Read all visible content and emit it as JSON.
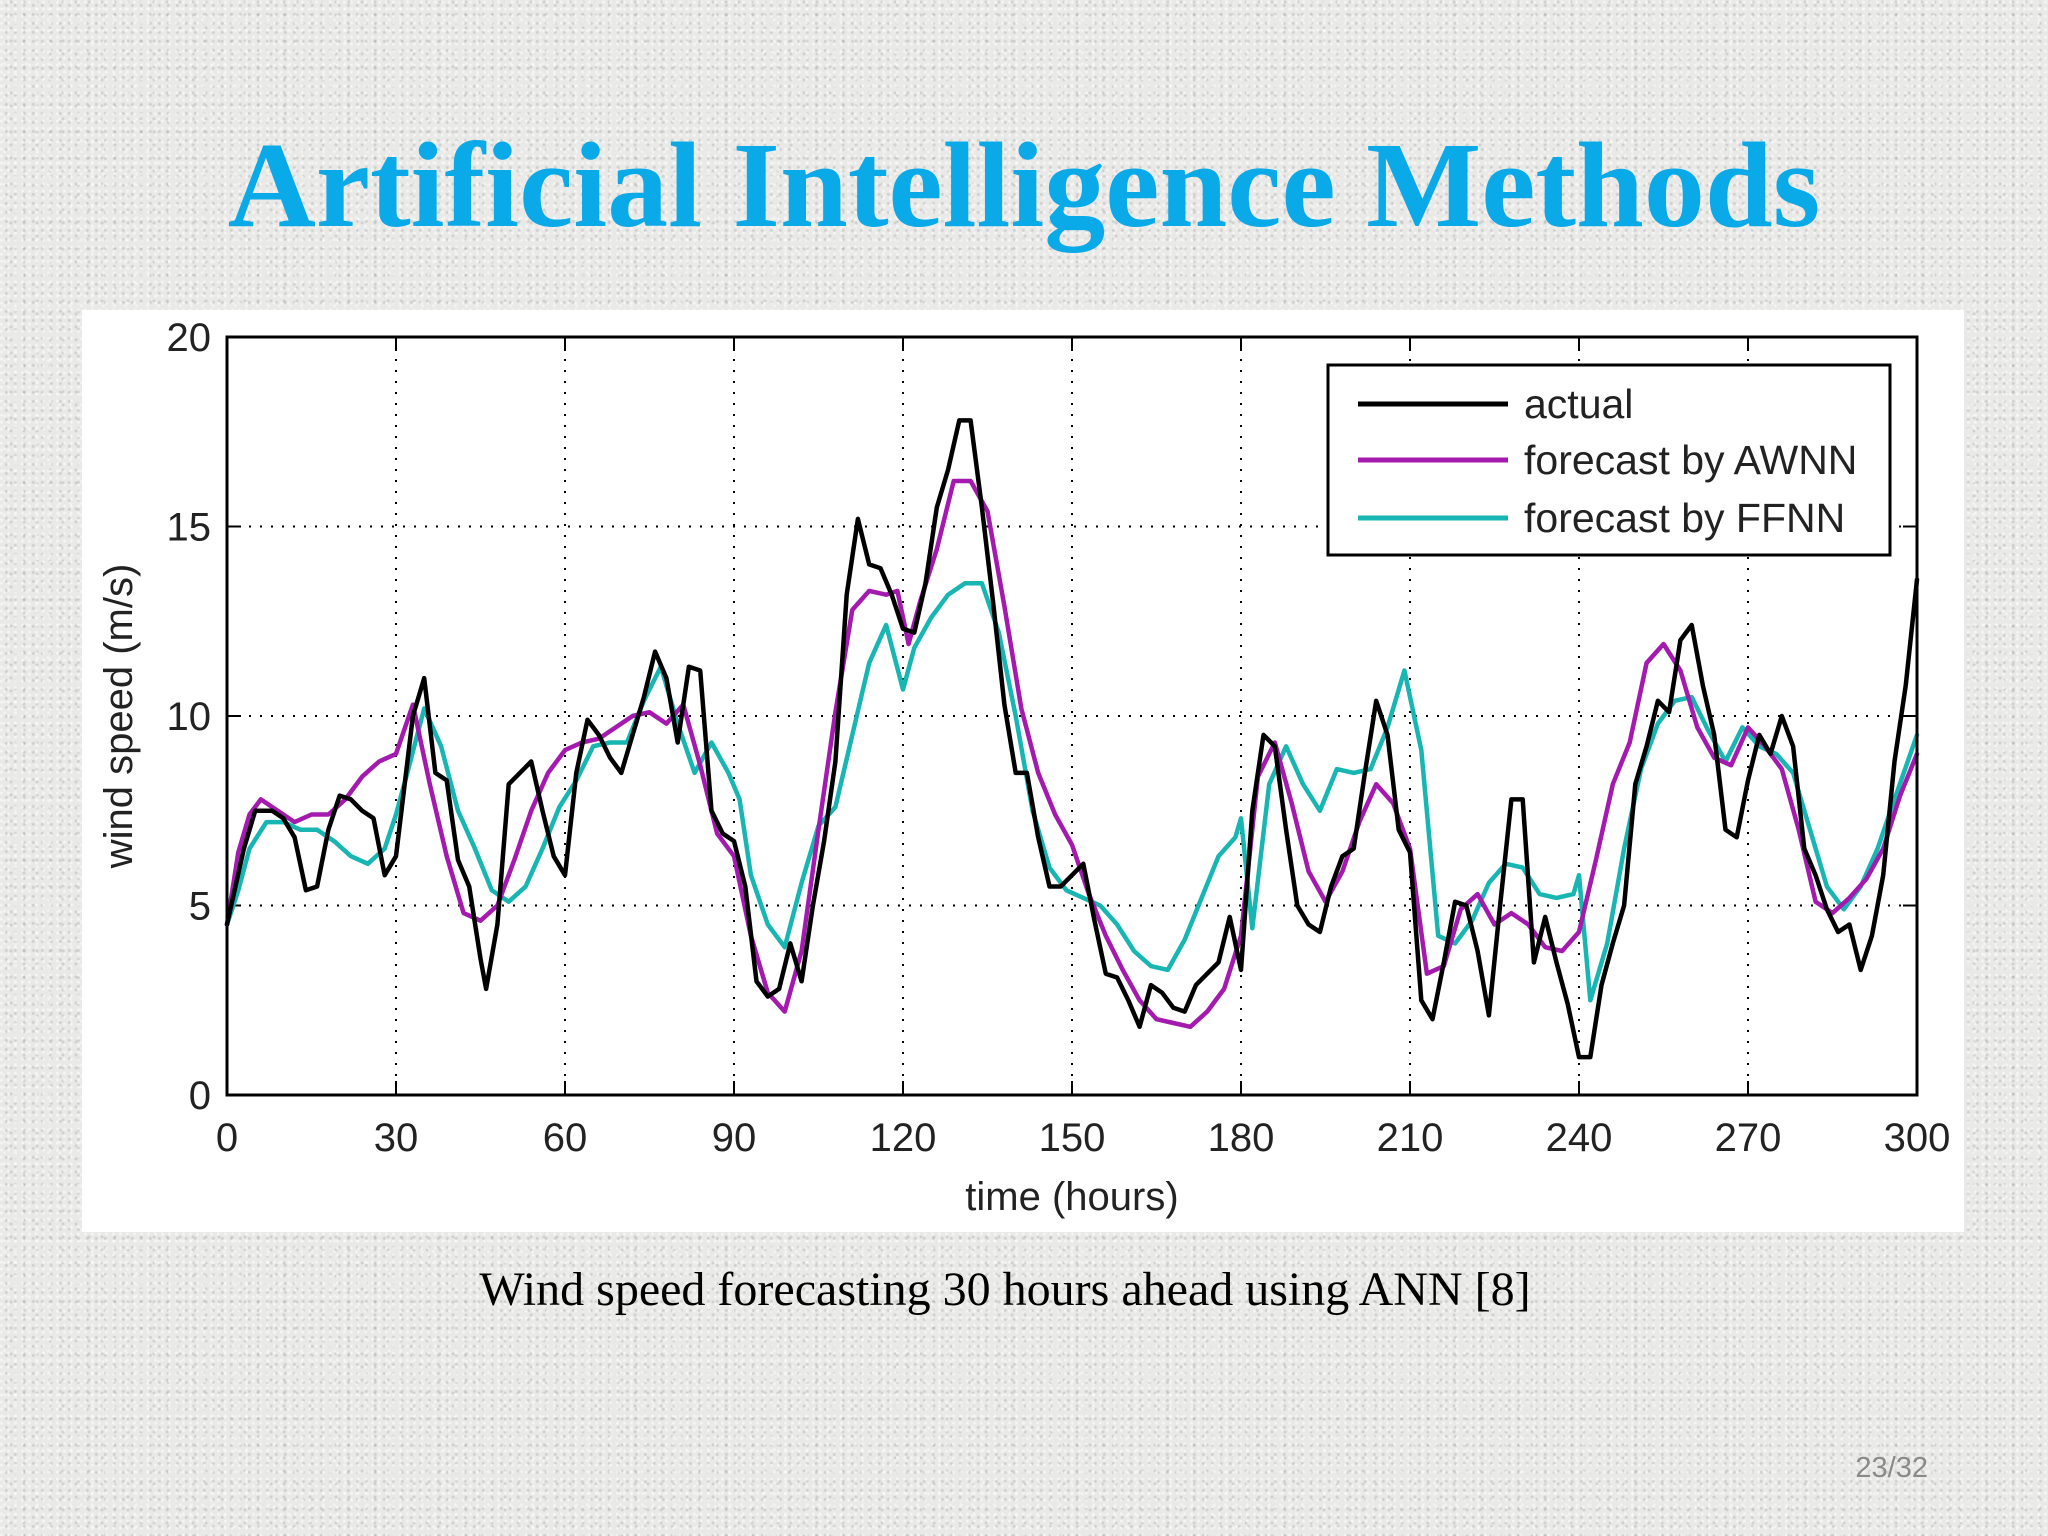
{
  "slide": {
    "title": "Artificial Intelligence Methods",
    "caption": "Wind speed forecasting 30 hours ahead using ANN [8]",
    "page_number": "23/32",
    "title_color": "#0aa9e8"
  },
  "chart_data": {
    "type": "line",
    "title": "",
    "xlabel": "time (hours)",
    "ylabel": "wind speed (m/s)",
    "xlim": [
      0,
      300
    ],
    "ylim": [
      0,
      20
    ],
    "xticks": [
      0,
      30,
      60,
      90,
      120,
      150,
      180,
      210,
      240,
      270,
      300
    ],
    "yticks": [
      0,
      5,
      10,
      15,
      20
    ],
    "grid": true,
    "legend_position": "top-right",
    "series": [
      {
        "name": "actual",
        "color": "#000000",
        "x": [
          0,
          3,
          5,
          8,
          10,
          12,
          14,
          16,
          18,
          20,
          22,
          24,
          26,
          28,
          30,
          33,
          35,
          37,
          39,
          41,
          43,
          45,
          46,
          48,
          50,
          52,
          54,
          56,
          58,
          60,
          62,
          64,
          66,
          68,
          70,
          72,
          74,
          76,
          78,
          80,
          82,
          84,
          86,
          88,
          90,
          92,
          94,
          96,
          98,
          100,
          102,
          104,
          106,
          108,
          110,
          112,
          114,
          116,
          118,
          120,
          122,
          124,
          126,
          128,
          130,
          132,
          134,
          136,
          138,
          140,
          142,
          144,
          146,
          148,
          150,
          152,
          154,
          156,
          158,
          160,
          162,
          164,
          166,
          168,
          170,
          172,
          174,
          176,
          178,
          180,
          182,
          184,
          186,
          188,
          190,
          192,
          194,
          196,
          198,
          200,
          202,
          204,
          206,
          208,
          210,
          212,
          214,
          216,
          218,
          220,
          222,
          224,
          226,
          228,
          230,
          232,
          234,
          236,
          238,
          240,
          242,
          244,
          246,
          248,
          250,
          252,
          254,
          256,
          258,
          260,
          262,
          264,
          266,
          268,
          270,
          272,
          274,
          276,
          278,
          280,
          282,
          284,
          286,
          288,
          290,
          292,
          294,
          296,
          298,
          300
        ],
        "values": [
          4.5,
          6.5,
          7.5,
          7.5,
          7.3,
          6.8,
          5.4,
          5.5,
          7,
          7.9,
          7.8,
          7.5,
          7.3,
          5.8,
          6.3,
          10,
          11,
          8.5,
          8.3,
          6.2,
          5.5,
          3.6,
          2.8,
          4.5,
          8.2,
          8.5,
          8.8,
          7.5,
          6.3,
          5.8,
          8.5,
          9.9,
          9.5,
          8.9,
          8.5,
          9.5,
          10.5,
          11.7,
          11,
          9.3,
          11.3,
          11.2,
          7.5,
          6.9,
          6.7,
          5.5,
          3,
          2.6,
          2.8,
          4,
          3,
          5,
          6.7,
          8.8,
          13.2,
          15.2,
          14,
          13.9,
          13.2,
          12.3,
          12.2,
          13.5,
          15.5,
          16.5,
          17.8,
          17.8,
          15.5,
          13,
          10.3,
          8.5,
          8.5,
          6.8,
          5.5,
          5.5,
          5.8,
          6.1,
          4.6,
          3.2,
          3.1,
          2.5,
          1.8,
          2.9,
          2.7,
          2.3,
          2.2,
          2.9,
          3.2,
          3.5,
          4.7,
          3.3,
          7.5,
          9.5,
          9.2,
          7,
          5,
          4.5,
          4.3,
          5.5,
          6.3,
          6.5,
          8.5,
          10.4,
          9.5,
          7,
          6.4,
          2.5,
          2,
          3.5,
          5.1,
          5,
          3.8,
          2.1,
          5,
          7.8,
          7.8,
          3.5,
          4.7,
          3.5,
          2.4,
          1,
          1,
          2.9,
          4,
          5,
          8.2,
          9.2,
          10.4,
          10.1,
          12,
          12.4,
          10.8,
          9.5,
          7,
          6.8,
          8.3,
          9.5,
          9,
          10,
          9.2,
          6.5,
          5.8,
          4.9,
          4.3,
          4.5,
          3.3,
          4.2,
          5.8,
          8.8,
          10.8,
          13.6
        ]
      },
      {
        "name": "forecast by AWNN",
        "color": "#a51aae",
        "x": [
          0,
          2,
          4,
          6,
          9,
          12,
          15,
          18,
          21,
          24,
          27,
          30,
          33,
          36,
          39,
          42,
          45,
          48,
          51,
          54,
          57,
          60,
          63,
          66,
          69,
          72,
          75,
          78,
          81,
          84,
          87,
          90,
          93,
          96,
          99,
          102,
          105,
          108,
          111,
          114,
          117,
          119,
          121,
          123,
          126,
          129,
          132,
          135,
          138,
          141,
          144,
          147,
          150,
          153,
          156,
          159,
          162,
          165,
          168,
          171,
          174,
          177,
          180,
          183,
          186,
          189,
          192,
          195,
          198,
          201,
          204,
          207,
          210,
          213,
          216,
          219,
          222,
          225,
          228,
          231,
          234,
          237,
          240,
          243,
          246,
          249,
          252,
          255,
          258,
          261,
          264,
          267,
          270,
          273,
          276,
          279,
          282,
          285,
          288,
          291,
          294,
          297,
          300
        ],
        "values": [
          4.5,
          6.4,
          7.4,
          7.8,
          7.5,
          7.2,
          7.4,
          7.4,
          7.8,
          8.4,
          8.8,
          9,
          10.3,
          8.2,
          6.3,
          4.8,
          4.6,
          5,
          6.2,
          7.5,
          8.5,
          9.1,
          9.3,
          9.4,
          9.7,
          10,
          10.1,
          9.8,
          10.3,
          8.7,
          6.9,
          6.3,
          4.2,
          2.7,
          2.2,
          3.8,
          7,
          10.1,
          12.8,
          13.3,
          13.2,
          13.3,
          11.9,
          13,
          14.4,
          16.2,
          16.2,
          15.4,
          12.9,
          10.2,
          8.5,
          7.4,
          6.6,
          5.3,
          4.2,
          3.3,
          2.5,
          2,
          1.9,
          1.8,
          2.2,
          2.8,
          4.2,
          8.4,
          9.3,
          7.7,
          5.9,
          5.1,
          5.9,
          7.2,
          8.2,
          7.7,
          6.5,
          3.2,
          3.4,
          4.9,
          5.3,
          4.5,
          4.8,
          4.5,
          3.9,
          3.8,
          4.3,
          6.2,
          8.2,
          9.3,
          11.4,
          11.9,
          11.2,
          9.7,
          8.9,
          8.7,
          9.7,
          9.2,
          8.6,
          7,
          5.1,
          4.8,
          5.2,
          5.7,
          6.5,
          7.9,
          9
        ]
      },
      {
        "name": "forecast by FFNN",
        "color": "#17b6b2",
        "x": [
          0,
          2,
          4,
          7,
          10,
          13,
          16,
          19,
          22,
          25,
          28,
          30,
          32,
          35,
          38,
          41,
          44,
          47,
          50,
          53,
          56,
          59,
          62,
          65,
          68,
          71,
          74,
          77,
          80,
          83,
          86,
          89,
          91,
          93,
          96,
          99,
          102,
          105,
          108,
          111,
          114,
          117,
          120,
          122,
          125,
          128,
          131,
          134,
          137,
          140,
          143,
          146,
          149,
          152,
          155,
          158,
          161,
          164,
          167,
          170,
          173,
          176,
          179,
          180,
          182,
          185,
          188,
          191,
          194,
          197,
          200,
          203,
          206,
          209,
          212,
          215,
          218,
          221,
          224,
          227,
          230,
          233,
          236,
          239,
          240,
          242,
          245,
          248,
          251,
          254,
          257,
          260,
          263,
          266,
          269,
          272,
          275,
          278,
          281,
          284,
          287,
          290,
          293,
          296,
          300
        ],
        "values": [
          4.5,
          5.4,
          6.5,
          7.2,
          7.2,
          7,
          7,
          6.7,
          6.3,
          6.1,
          6.5,
          7.4,
          8.5,
          10.2,
          9.2,
          7.5,
          6.5,
          5.4,
          5.1,
          5.5,
          6.5,
          7.6,
          8.3,
          9.2,
          9.3,
          9.3,
          10.4,
          11.3,
          9.8,
          8.5,
          9.3,
          8.5,
          7.8,
          5.8,
          4.5,
          3.9,
          5.6,
          7.1,
          7.6,
          9.5,
          11.4,
          12.4,
          10.7,
          11.8,
          12.6,
          13.2,
          13.5,
          13.5,
          12.2,
          10,
          7.5,
          6,
          5.4,
          5.2,
          5,
          4.5,
          3.8,
          3.4,
          3.3,
          4.1,
          5.2,
          6.3,
          6.8,
          7.3,
          4.4,
          8.2,
          9.2,
          8.2,
          7.5,
          8.6,
          8.5,
          8.6,
          9.7,
          11.2,
          9.1,
          4.2,
          4,
          4.6,
          5.6,
          6.1,
          6,
          5.3,
          5.2,
          5.3,
          5.8,
          2.5,
          4,
          6.5,
          8.6,
          9.8,
          10.4,
          10.5,
          9.6,
          8.8,
          9.7,
          9.2,
          9,
          8.5,
          7,
          5.5,
          4.9,
          5.5,
          6.5,
          7.8,
          9.5
        ]
      }
    ]
  }
}
